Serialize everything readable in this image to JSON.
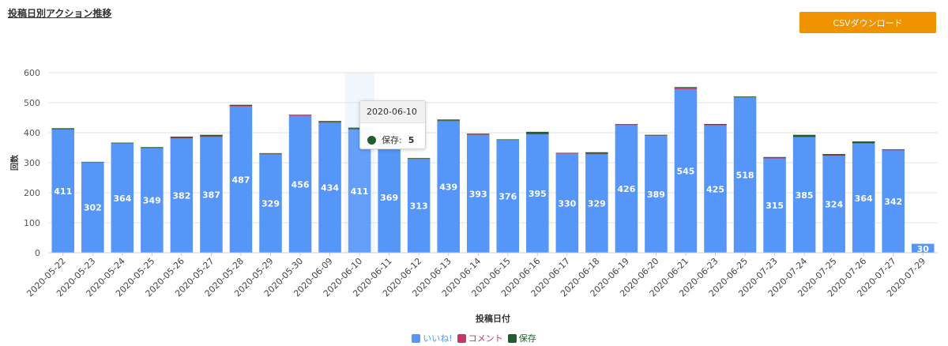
{
  "header": {
    "title": "投稿日別アクション推移"
  },
  "toolbar": {
    "csv_label": "CSVダウンロード"
  },
  "tooltip": {
    "date": "2020-06-10",
    "series": "保存",
    "value": "5",
    "color": "#1f5d2c"
  },
  "chart_data": {
    "type": "bar",
    "stacked": true,
    "title": "",
    "xlabel": "投稿日付",
    "ylabel": "回数",
    "ylim": [
      0,
      600
    ],
    "yticks": [
      0,
      100,
      200,
      300,
      400,
      500,
      600
    ],
    "grid": true,
    "legend_position": "bottom",
    "highlight_category": "2020-06-10",
    "categories": [
      "2020-05-22",
      "2020-05-23",
      "2020-05-24",
      "2020-05-25",
      "2020-05-26",
      "2020-05-27",
      "2020-05-28",
      "2020-05-29",
      "2020-05-30",
      "2020-06-09",
      "2020-06-10",
      "2020-06-11",
      "2020-06-12",
      "2020-06-13",
      "2020-06-14",
      "2020-06-15",
      "2020-06-16",
      "2020-06-17",
      "2020-06-18",
      "2020-06-19",
      "2020-06-20",
      "2020-06-21",
      "2020-06-23",
      "2020-06-25",
      "2020-07-23",
      "2020-07-24",
      "2020-07-25",
      "2020-07-26",
      "2020-07-27",
      "2020-07-29"
    ],
    "series": [
      {
        "name": "いいね!",
        "color": "#5596f8",
        "show_labels": true,
        "values": [
          411,
          302,
          364,
          349,
          382,
          387,
          487,
          329,
          456,
          434,
          411,
          369,
          313,
          439,
          393,
          376,
          395,
          330,
          329,
          426,
          389,
          545,
          425,
          518,
          315,
          385,
          324,
          364,
          342,
          30
        ]
      },
      {
        "name": "コメント",
        "color": "#c5376a",
        "show_labels": false,
        "values": [
          1,
          0,
          1,
          1,
          1,
          1,
          2,
          1,
          3,
          1,
          1,
          0,
          1,
          1,
          1,
          1,
          1,
          1,
          1,
          1,
          3,
          5,
          1,
          1,
          1,
          1,
          1,
          1,
          1,
          0
        ]
      },
      {
        "name": "保存",
        "color": "#1f5d2c",
        "show_labels": false,
        "values": [
          3,
          1,
          2,
          2,
          4,
          5,
          4,
          2,
          1,
          4,
          5,
          3,
          2,
          4,
          3,
          1,
          7,
          2,
          5,
          2,
          1,
          2,
          3,
          2,
          3,
          7,
          4,
          6,
          2,
          0
        ]
      }
    ]
  }
}
